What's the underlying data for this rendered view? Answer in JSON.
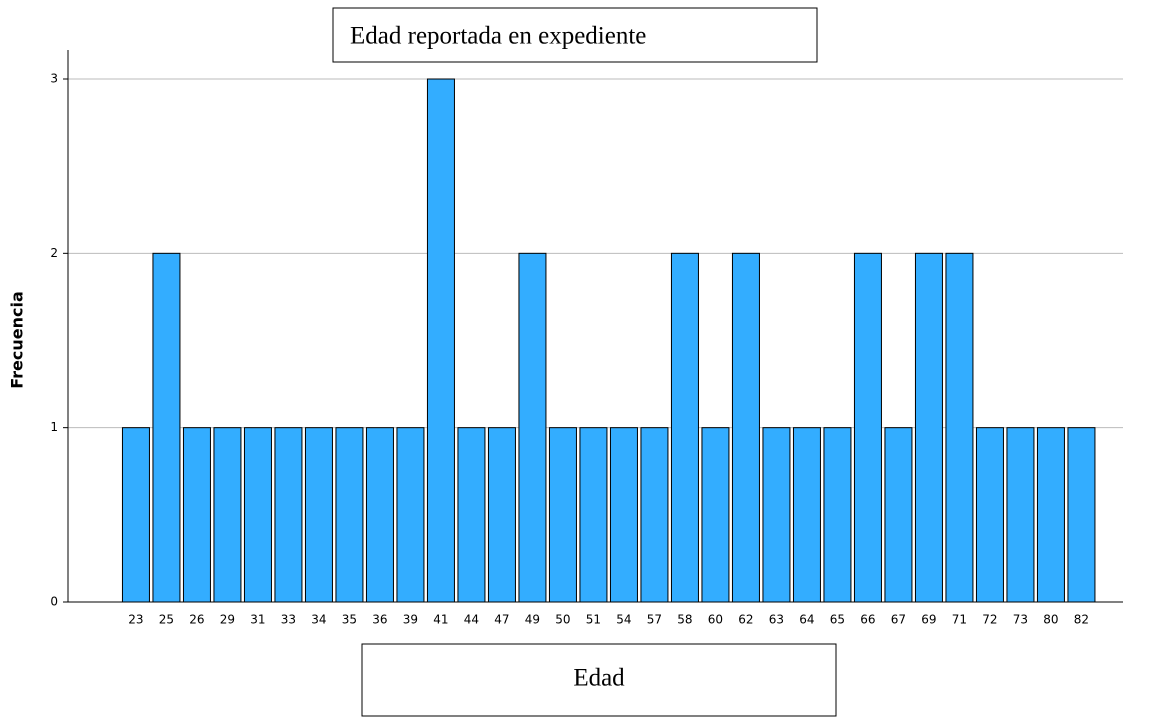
{
  "chart_data": {
    "type": "bar",
    "title": "Edad reportada en expediente",
    "x_label": "Edad",
    "y_label": "Frecuencia",
    "categories": [
      23,
      25,
      26,
      29,
      31,
      33,
      34,
      35,
      36,
      39,
      41,
      44,
      47,
      49,
      50,
      51,
      54,
      57,
      58,
      60,
      62,
      63,
      64,
      65,
      66,
      67,
      69,
      71,
      72,
      73,
      80,
      82
    ],
    "values": [
      1,
      2,
      1,
      1,
      1,
      1,
      1,
      1,
      1,
      1,
      3,
      1,
      1,
      2,
      1,
      1,
      1,
      1,
      2,
      1,
      2,
      1,
      1,
      1,
      2,
      1,
      2,
      2,
      1,
      1,
      1,
      1
    ],
    "color": "#33adff",
    "ylim": [
      0,
      3
    ],
    "yticks": [
      0,
      1,
      2,
      3
    ],
    "grid": true
  }
}
